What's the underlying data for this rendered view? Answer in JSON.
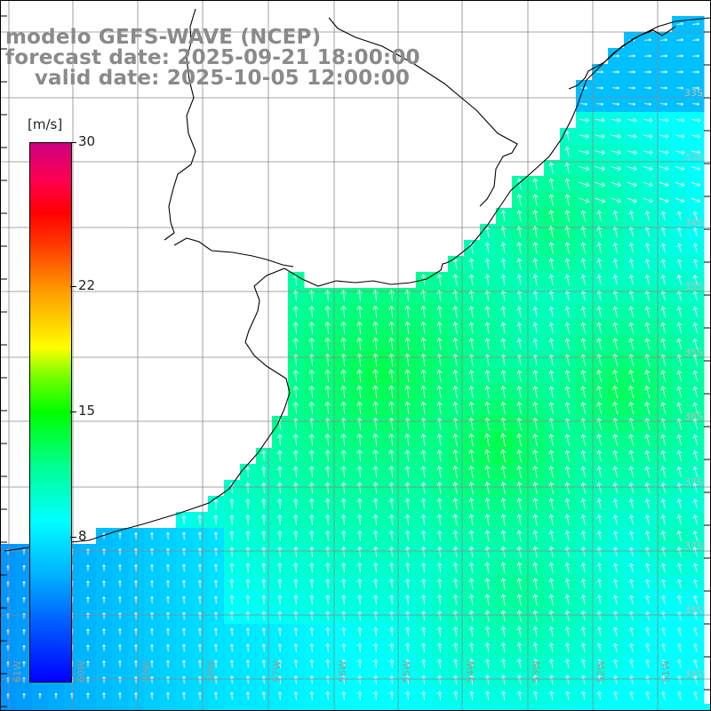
{
  "title": {
    "line1": "modelo GEFS-WAVE (NCEP)",
    "line2": "forecast date: 2025-09-21 18:00:00",
    "line3": "    valid date: 2025-10-05 12:00:00"
  },
  "colorbar": {
    "units": "[m/s]",
    "min": 0,
    "max": 30,
    "ticks": [
      {
        "label": "30",
        "value": 30
      },
      {
        "label": "22",
        "value": 22
      },
      {
        "label": "15",
        "value": 15
      },
      {
        "label": "8",
        "value": 8
      }
    ],
    "colors": [
      "#0000ff",
      "#00b3ff",
      "#00ffff",
      "#00ff00",
      "#ffff00",
      "#ffa000",
      "#ff0000",
      "#cc0080"
    ]
  },
  "map": {
    "lon_range": [
      -61,
      -51
    ],
    "lat_range": [
      -41.5,
      -32
    ],
    "grid_lines": true,
    "lon_labels": [
      "61W",
      "60W",
      "59W",
      "58W",
      "57W",
      "56W",
      "55W",
      "54W",
      "53W",
      "52W",
      "51W"
    ],
    "lat_labels": [
      "33S",
      "33S",
      "34S",
      "35S",
      "35S",
      "36S",
      "37S",
      "37S",
      "38S",
      "39S",
      "40S",
      "41S"
    ],
    "land_color": "#ffffff",
    "arrow_color": "#ffffff",
    "coastline_color": "#000000"
  }
}
